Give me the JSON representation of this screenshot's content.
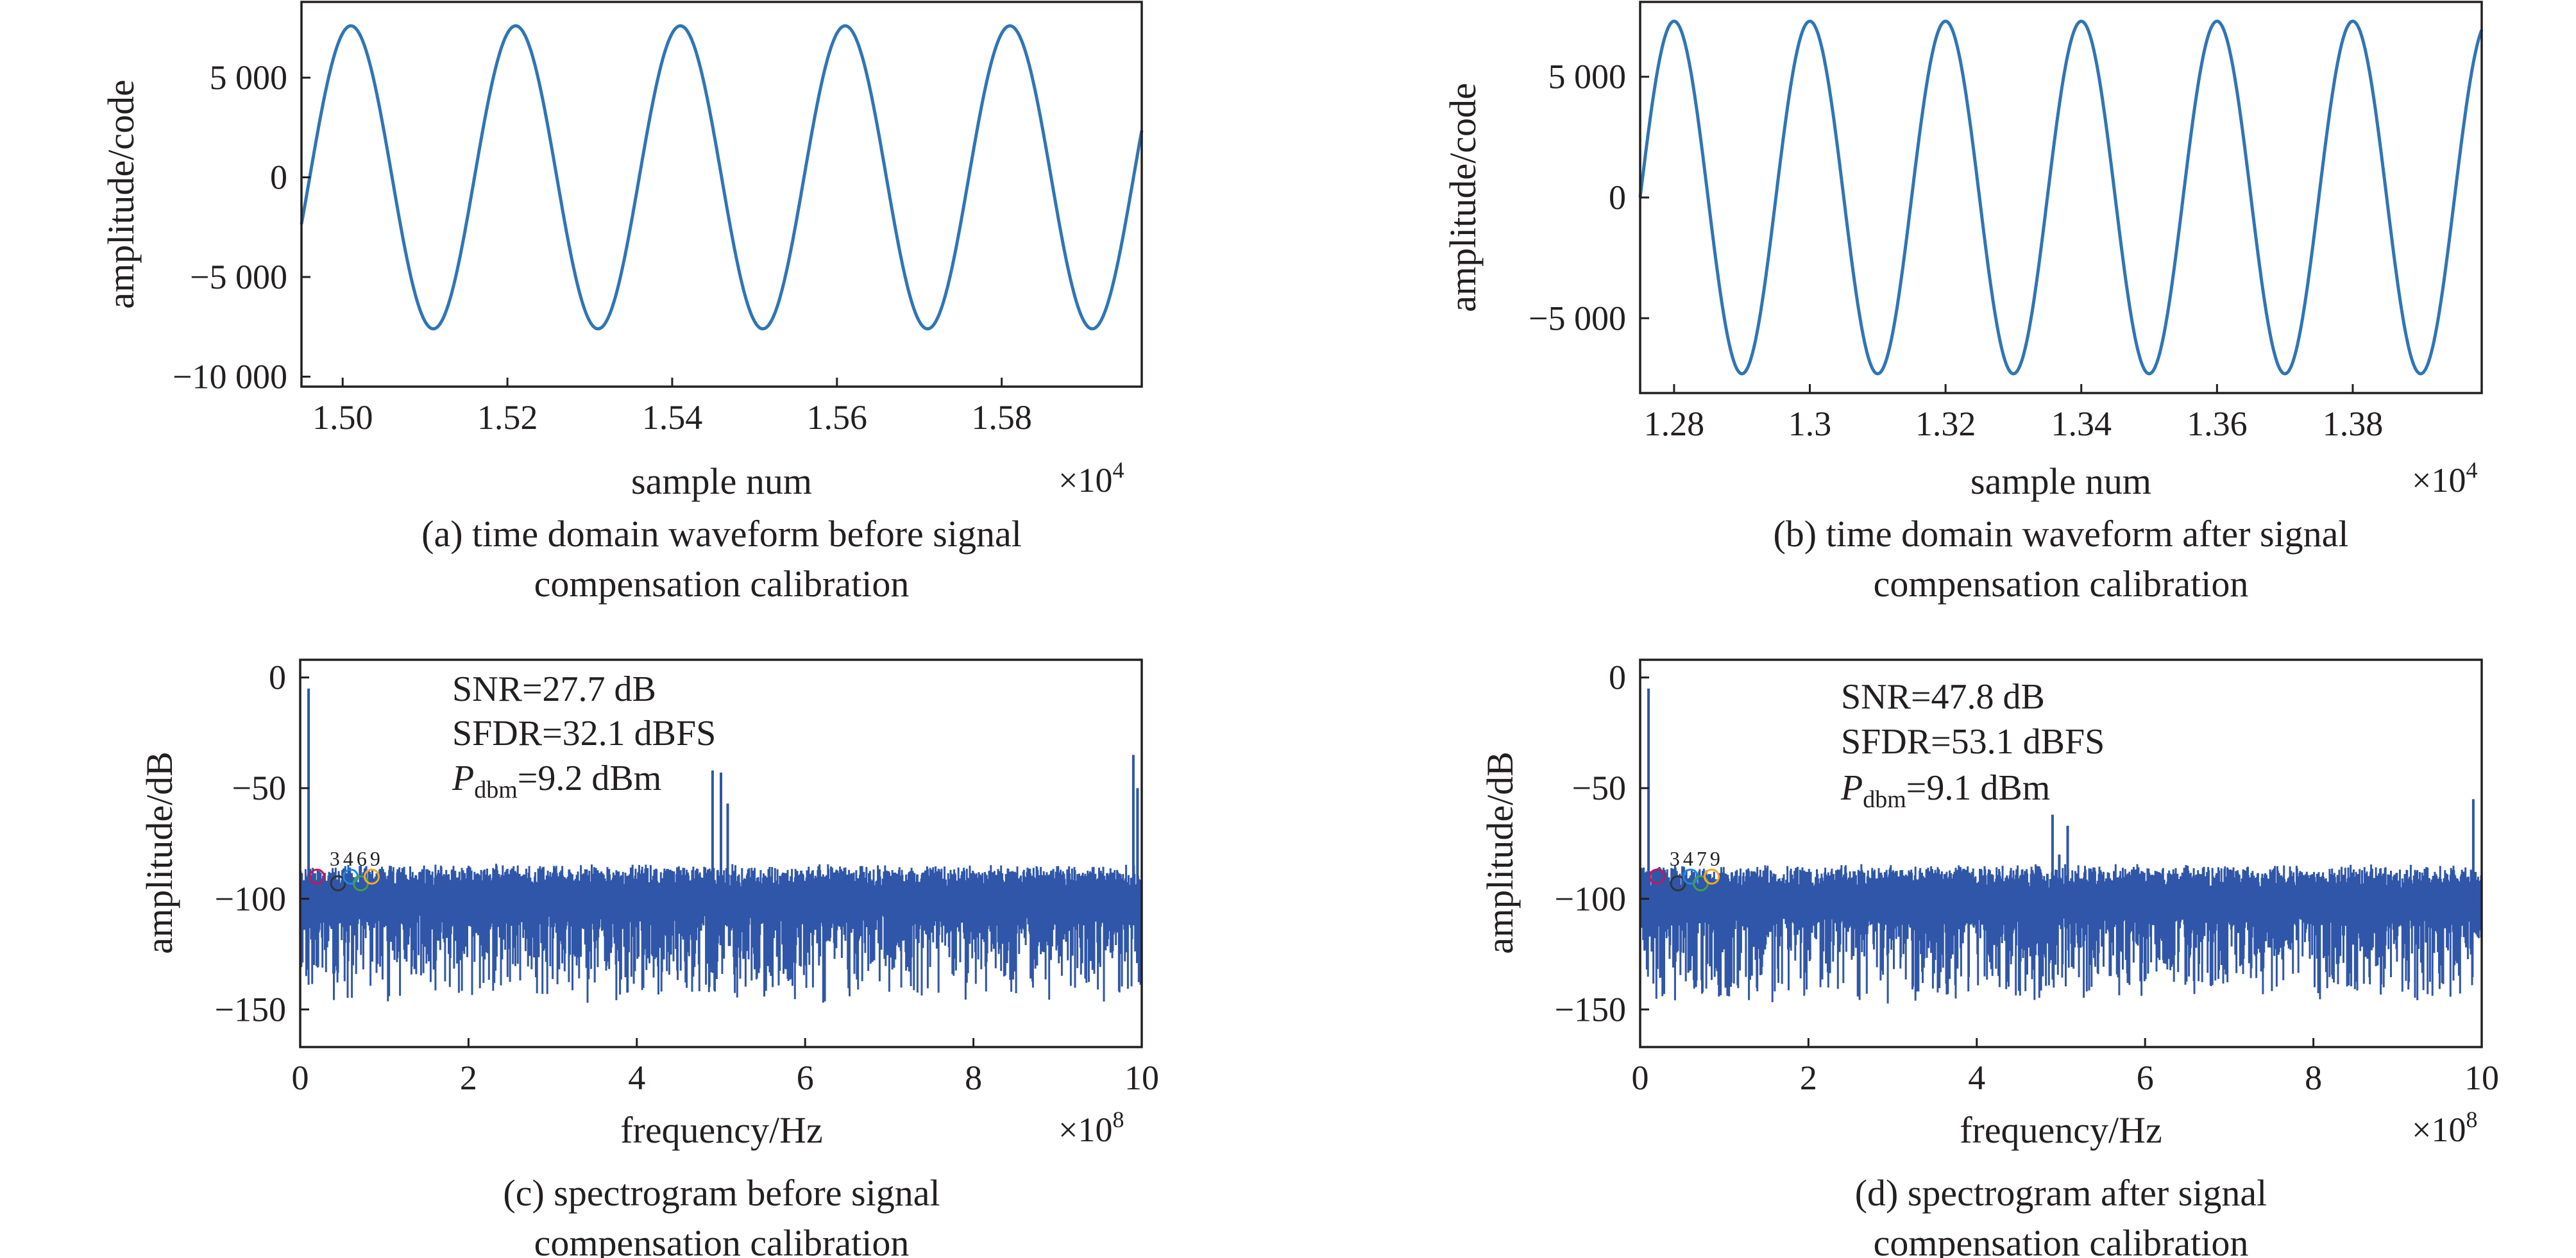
{
  "chart_data": [
    {
      "id": "a",
      "type": "line",
      "caption_line1": "(a) time domain waveform before signal",
      "caption_line2": "compensation calibration",
      "xlabel": "sample num",
      "ylabel": "amplitude/code",
      "x_multiplier_base": "×10",
      "x_multiplier_exp": "4",
      "xlim": [
        14950,
        15970
      ],
      "ylim": [
        -10500,
        8800
      ],
      "xticks": [
        15000,
        15200,
        15400,
        15600,
        15800
      ],
      "xtick_labels": [
        "1.50",
        "1.52",
        "1.54",
        "1.56",
        "1.58"
      ],
      "yticks": [
        5000,
        0,
        -5000,
        -10000
      ],
      "ytick_labels": [
        "5 000",
        "0",
        "−5 000",
        "−10 000"
      ],
      "series": [
        {
          "amplitude": 7600,
          "offset": 0,
          "period": 200,
          "peak_x": 15010,
          "x_start": 14950,
          "x_end": 15970,
          "color": "#2e75b6"
        }
      ]
    },
    {
      "id": "b",
      "type": "line",
      "caption_line1": "(b) time domain waveform after signal",
      "caption_line2": "compensation calibration",
      "xlabel": "sample num",
      "ylabel": "amplitude/code",
      "x_multiplier_base": "×10",
      "x_multiplier_exp": "4",
      "xlim": [
        12750,
        13990
      ],
      "ylim": [
        -8100,
        8100
      ],
      "xticks": [
        12800,
        13000,
        13200,
        13400,
        13600,
        13800
      ],
      "xtick_labels": [
        "1.28",
        "1.3",
        "1.32",
        "1.34",
        "1.36",
        "1.38"
      ],
      "yticks": [
        5000,
        0,
        -5000
      ],
      "ytick_labels": [
        "5 000",
        "0",
        "−5 000"
      ],
      "series": [
        {
          "amplitude": 7300,
          "offset": 0,
          "period": 200,
          "peak_x": 12800,
          "x_start": 12750,
          "x_end": 13990,
          "color": "#2e75b6"
        }
      ]
    },
    {
      "id": "c",
      "type": "line",
      "caption_line1": "(c) spectrogram before signal",
      "caption_line2": "compensation calibration",
      "xlabel": "frequency/Hz",
      "ylabel": "amplitude/dB",
      "x_multiplier_base": "×10",
      "x_multiplier_exp": "8",
      "xlim": [
        0,
        1000000000
      ],
      "ylim": [
        -167,
        8
      ],
      "xticks": [
        0,
        200000000,
        400000000,
        600000000,
        800000000,
        1000000000
      ],
      "xtick_labels": [
        "0",
        "2",
        "4",
        "6",
        "8",
        "10"
      ],
      "yticks": [
        0,
        -50,
        -100,
        -150
      ],
      "ytick_labels": [
        "0",
        "−50",
        "−100",
        "−150"
      ],
      "annotations": {
        "snr": "SNR=27.7 dB",
        "sfdr": "SFDR=32.1 dBFS",
        "p_sym": "P",
        "p_sub": "dbm",
        "p_val": "=9.2 dBm"
      },
      "noise_floor_db": -100,
      "peaks": [
        {
          "x": 10000000,
          "y": -5
        },
        {
          "x": 490000000,
          "y": -42
        },
        {
          "x": 500000000,
          "y": -43
        },
        {
          "x": 508000000,
          "y": -57
        },
        {
          "x": 990000000,
          "y": -35
        },
        {
          "x": 995000000,
          "y": -50
        }
      ],
      "harmonic_labels": [
        "3",
        "4",
        "6",
        "9"
      ],
      "color": "#2f56a8"
    },
    {
      "id": "d",
      "type": "line",
      "caption_line1": "(d) spectrogram after signal",
      "caption_line2": "compensation calibration",
      "xlabel": "frequency/Hz",
      "ylabel": "amplitude/dB",
      "x_multiplier_base": "×10",
      "x_multiplier_exp": "8",
      "xlim": [
        0,
        1000000000
      ],
      "ylim": [
        -167,
        8
      ],
      "xticks": [
        0,
        200000000,
        400000000,
        600000000,
        800000000,
        1000000000
      ],
      "xtick_labels": [
        "0",
        "2",
        "4",
        "6",
        "8",
        "10"
      ],
      "yticks": [
        0,
        -50,
        -100,
        -150
      ],
      "ytick_labels": [
        "0",
        "−50",
        "−100",
        "−150"
      ],
      "annotations": {
        "snr": "SNR=47.8 dB",
        "sfdr": "SFDR=53.1 dBFS",
        "p_sym": "P",
        "p_sub": "dbm",
        "p_val": "=9.1 dBm"
      },
      "noise_floor_db": -100,
      "peaks": [
        {
          "x": 10000000,
          "y": -5
        },
        {
          "x": 490000000,
          "y": -62
        },
        {
          "x": 498000000,
          "y": -80
        },
        {
          "x": 508000000,
          "y": -67
        },
        {
          "x": 990000000,
          "y": -55
        }
      ],
      "harmonic_labels": [
        "3",
        "4",
        "7",
        "9"
      ],
      "color": "#2f56a8"
    }
  ]
}
